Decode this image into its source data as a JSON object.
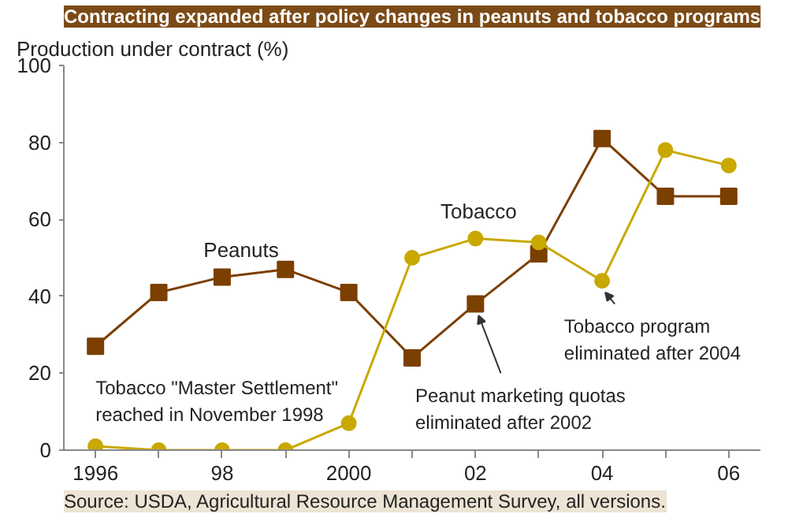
{
  "chart_data": {
    "type": "line",
    "title": "Contracting expanded after policy changes in peanuts and tobacco programs",
    "ylabel": "Production under contract (%)",
    "x": [
      1996,
      1997,
      1998,
      1999,
      2000,
      2001,
      2002,
      2003,
      2004,
      2005,
      2006
    ],
    "series": [
      {
        "name": "Peanuts",
        "color": "#7b3f00",
        "marker": "square",
        "values": [
          27,
          41,
          45,
          47,
          41,
          24,
          38,
          51,
          81,
          66,
          66
        ]
      },
      {
        "name": "Tobacco",
        "color": "#c9a800",
        "marker": "circle",
        "values": [
          1,
          0,
          0,
          0,
          7,
          50,
          55,
          54,
          44,
          78,
          74
        ]
      }
    ],
    "xlim": [
      1995.5,
      2006.5
    ],
    "ylim": [
      0,
      100
    ],
    "xticks": [
      {
        "value": 1996,
        "label": "1996"
      },
      {
        "value": 1997,
        "label": null
      },
      {
        "value": 1998,
        "label": "98"
      },
      {
        "value": 1999,
        "label": null
      },
      {
        "value": 2000,
        "label": "2000"
      },
      {
        "value": 2001,
        "label": null
      },
      {
        "value": 2002,
        "label": "02"
      },
      {
        "value": 2003,
        "label": null
      },
      {
        "value": 2004,
        "label": "04"
      },
      {
        "value": 2005,
        "label": null
      },
      {
        "value": 2006,
        "label": "06"
      }
    ],
    "yticks": [
      0,
      20,
      40,
      60,
      80,
      100
    ],
    "grid": false,
    "line_style": "solid",
    "annotations": [
      {
        "text": "Tobacco \"Master Settlement\"\nreached in November 1998",
        "x": 1998,
        "y": 0
      },
      {
        "text": "Peanut marketing quotas\neliminated after 2002",
        "x": 2002,
        "y": 38
      },
      {
        "text": "Tobacco program\neliminated after 2004",
        "x": 2004,
        "y": 44
      },
      "Source: USDA, Agricultural Resource Management Survey, all versions."
    ]
  }
}
